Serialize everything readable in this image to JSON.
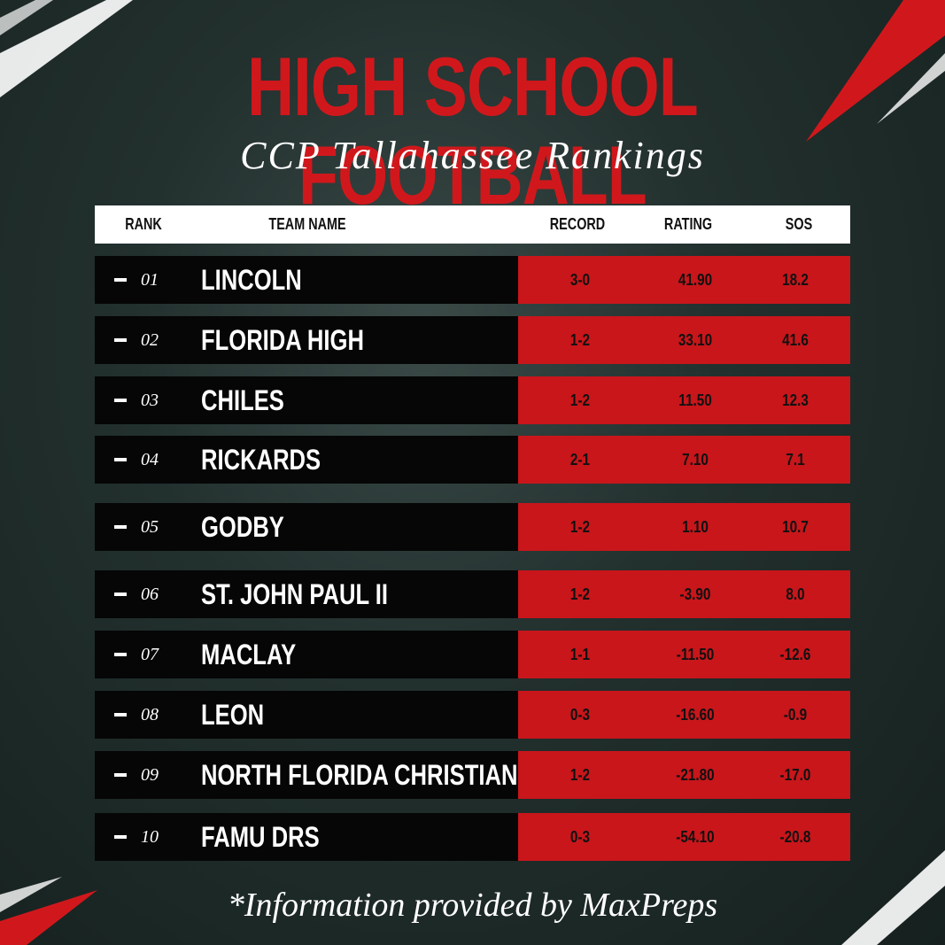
{
  "header": {
    "title": "HIGH SCHOOL FOOTBALL",
    "subtitle": "CCP Tallahassee Rankings"
  },
  "table": {
    "columns": [
      "RANK",
      "TEAM NAME",
      "RECORD",
      "RATING",
      "SOS"
    ],
    "rows": [
      [
        "01",
        "LINCOLN",
        "3-0",
        "41.90",
        "18.2"
      ],
      [
        "02",
        "FLORIDA HIGH",
        "1-2",
        "33.10",
        "41.6"
      ],
      [
        "03",
        "CHILES",
        "1-2",
        "11.50",
        "12.3"
      ],
      [
        "04",
        "RICKARDS",
        "2-1",
        "7.10",
        "7.1"
      ],
      [
        "05",
        "GODBY",
        "1-2",
        "1.10",
        "10.7"
      ],
      [
        "06",
        "ST. JOHN PAUL II",
        "1-2",
        "-3.90",
        "8.0"
      ],
      [
        "07",
        "MACLAY",
        "1-1",
        "-11.50",
        "-12.6"
      ],
      [
        "08",
        "LEON",
        "0-3",
        "-16.60",
        "-0.9"
      ],
      [
        "09",
        "NORTH FLORIDA CHRISTIAN",
        "1-2",
        "-21.80",
        "-17.0"
      ],
      [
        "10",
        "FAMU DRS",
        "0-3",
        "-54.10",
        "-20.8"
      ]
    ]
  },
  "footer": "*Information provided by MaxPreps"
}
